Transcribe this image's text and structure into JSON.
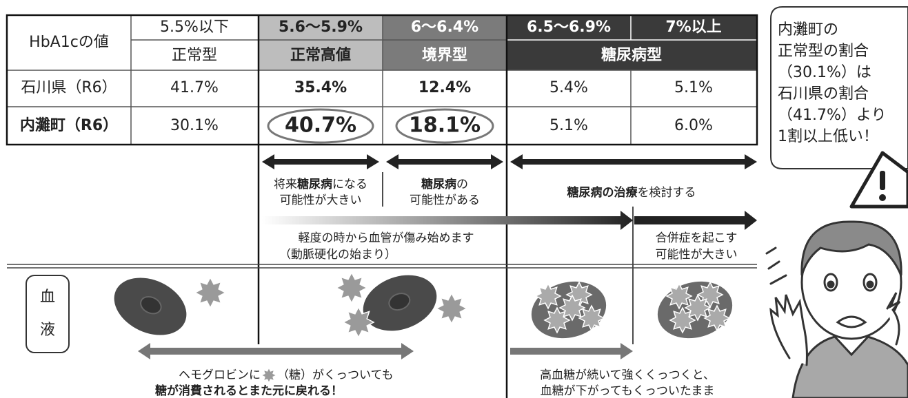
{
  "table": {
    "header": {
      "label": "HbA1cの値",
      "ranges": [
        "5.5%以下",
        "5.6〜5.9%",
        "6〜6.4%",
        "6.5〜6.9%",
        "7%以上"
      ],
      "types": [
        "正常型",
        "正常高値",
        "境界型",
        "糖尿病型"
      ]
    },
    "rows": [
      [
        "石川県（R6）",
        "41.7%",
        "35.4%",
        "12.4%",
        "5.4%",
        "5.1%"
      ],
      [
        "内灘町（R6）",
        "30.1%",
        "40.7%",
        "18.1%",
        "5.1%",
        "6.0%"
      ]
    ]
  },
  "callout": [
    "内灘町の",
    "正常型の割合",
    "（30.1%）は",
    "石川県の割合",
    "（41.7%）より",
    "1割以上低い！"
  ],
  "notes": [
    {
      "line1": [
        "将来",
        "糖尿病",
        "になる"
      ],
      "line2": "可能性が大きい"
    },
    {
      "line1": [
        "糖尿病",
        "の"
      ],
      "line2": "可能性がある"
    },
    {
      "line1": [
        "糖尿病の治療",
        "を検討する"
      ]
    }
  ],
  "progress": {
    "early": [
      "軽度の時から血管が傷み始めます",
      "（動脈硬化の始まり）"
    ],
    "late": [
      "合併症を起こす",
      "可能性が大きい"
    ]
  },
  "blood": {
    "label": [
      "血",
      "液"
    ],
    "reversible": [
      "ヘモグロビンに",
      "（糖）がくっついても",
      "糖が消費されるとまた元に戻れる！"
    ],
    "irreversible": [
      "高血糖が続いて強くくっつくと、",
      "血糖が下がってもくっついたまま"
    ]
  }
}
